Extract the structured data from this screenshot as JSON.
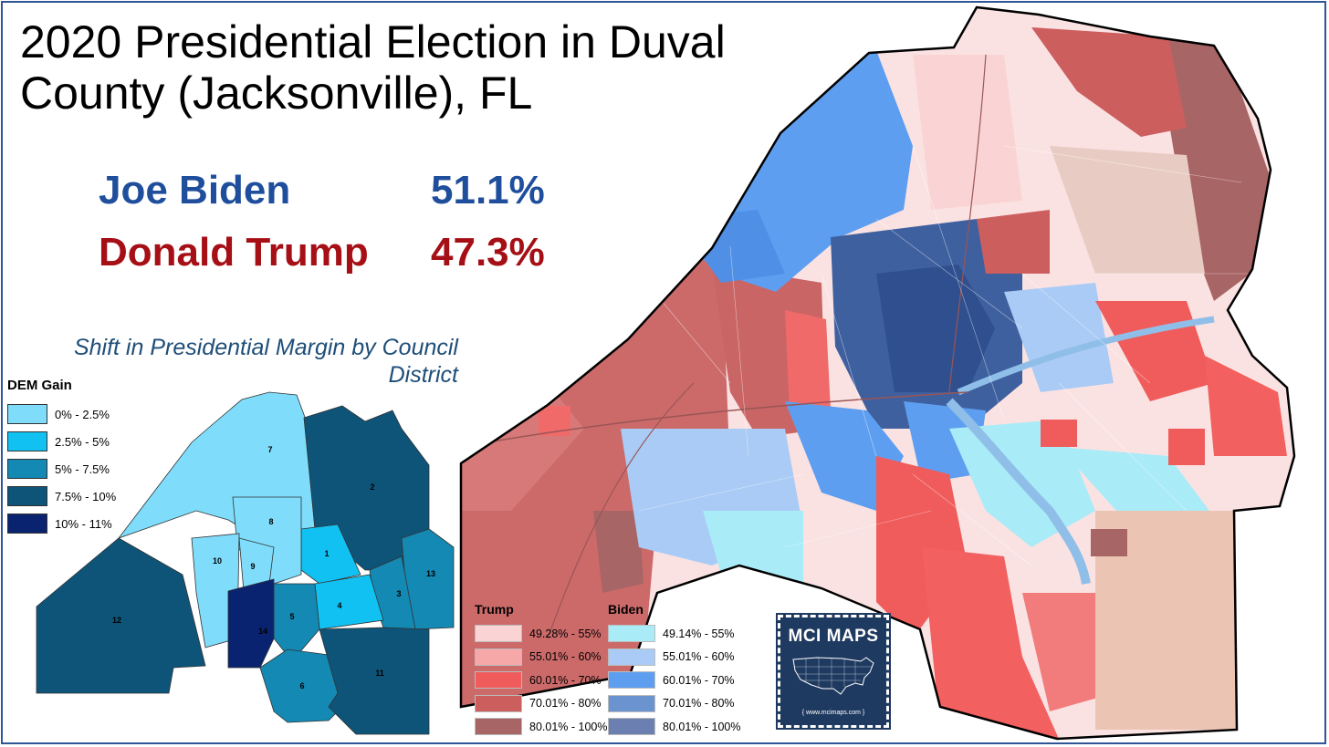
{
  "title": "2020 Presidential Election in Duval County (Jacksonville), FL",
  "results": {
    "biden": {
      "name": "Joe Biden",
      "pct": "51.1%",
      "color": "#1f4e9c"
    },
    "trump": {
      "name": "Donald Trump",
      "pct": "47.3%",
      "color": "#a50f15"
    }
  },
  "inset": {
    "title": "Shift in Presidential Margin by Council District",
    "legend_title": "DEM Gain",
    "legend": [
      {
        "label": "0% - 2.5%",
        "color": "#7fdcfb"
      },
      {
        "label": "2.5% - 5%",
        "color": "#11c1f1"
      },
      {
        "label": "5% - 7.5%",
        "color": "#1389b3"
      },
      {
        "label": "7.5% - 10%",
        "color": "#0d5478"
      },
      {
        "label": "10% - 11%",
        "color": "#0a2370"
      }
    ],
    "districts": [
      {
        "label": "1",
        "color": "#11c1f1"
      },
      {
        "label": "2",
        "color": "#0d5478"
      },
      {
        "label": "3",
        "color": "#1389b3"
      },
      {
        "label": "4",
        "color": "#11c1f1"
      },
      {
        "label": "5",
        "color": "#1389b3"
      },
      {
        "label": "6",
        "color": "#1389b3"
      },
      {
        "label": "7",
        "color": "#7fdcfb"
      },
      {
        "label": "8",
        "color": "#7fdcfb"
      },
      {
        "label": "9",
        "color": "#7fdcfb"
      },
      {
        "label": "10",
        "color": "#7fdcfb"
      },
      {
        "label": "11",
        "color": "#0d5478"
      },
      {
        "label": "12",
        "color": "#0d5478"
      },
      {
        "label": "13",
        "color": "#1389b3"
      },
      {
        "label": "14",
        "color": "#0a2370"
      }
    ]
  },
  "precinct_legend": {
    "trump_title": "Trump",
    "biden_title": "Biden",
    "trump": [
      {
        "label": "49.28% - 55%",
        "color": "#fad4d4"
      },
      {
        "label": "55.01% - 60%",
        "color": "#f6a8a8"
      },
      {
        "label": "60.01% - 70%",
        "color": "#f05c5c"
      },
      {
        "label": "70.01% - 80%",
        "color": "#cc5e5e"
      },
      {
        "label": "80.01% - 100%",
        "color": "#a86565"
      }
    ],
    "biden": [
      {
        "label": "49.14% - 55%",
        "color": "#a9ebf7"
      },
      {
        "label": "55.01% - 60%",
        "color": "#a9cbf5"
      },
      {
        "label": "60.01% - 70%",
        "color": "#5e9ef0"
      },
      {
        "label": "70.01% - 80%",
        "color": "#6b93d0"
      },
      {
        "label": "80.01% - 100%",
        "color": "#6b7fb0"
      }
    ]
  },
  "logo": {
    "brand": "MCI MAPS",
    "site": "{ www.mcimaps.com }",
    "icon": "usa-map-icon"
  }
}
